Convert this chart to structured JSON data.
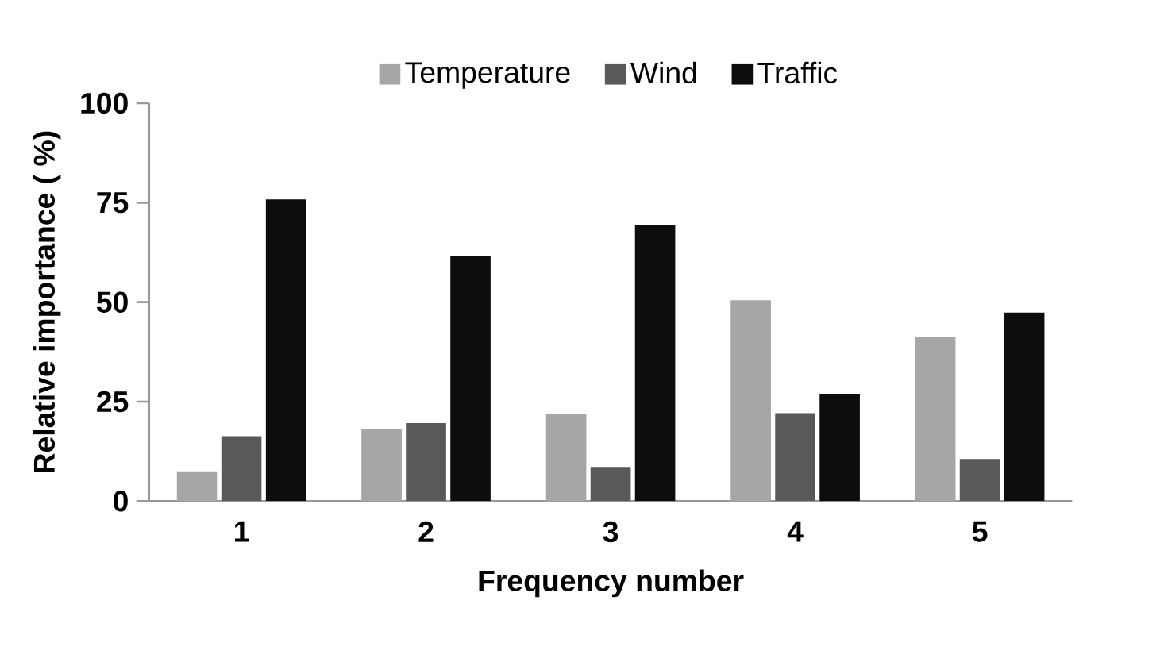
{
  "chart_data": {
    "type": "bar",
    "xlabel": "Frequency number",
    "ylabel": "Relative importance ( %)",
    "categories": [
      "1",
      "2",
      "3",
      "4",
      "5"
    ],
    "series": [
      {
        "name": "Temperature",
        "color": "#a6a6a6",
        "values": [
          7.3,
          18.1,
          21.8,
          50.5,
          41.2
        ]
      },
      {
        "name": "Wind",
        "color": "#595959",
        "values": [
          16.3,
          19.6,
          8.6,
          22.1,
          10.6
        ]
      },
      {
        "name": "Traffic",
        "color": "#0d0d0d",
        "values": [
          75.8,
          61.6,
          69.3,
          27.0,
          47.4
        ]
      }
    ],
    "ylim": [
      0,
      100
    ],
    "yticks": [
      0,
      25,
      50,
      75,
      100
    ],
    "grid": false,
    "legend": "top"
  }
}
